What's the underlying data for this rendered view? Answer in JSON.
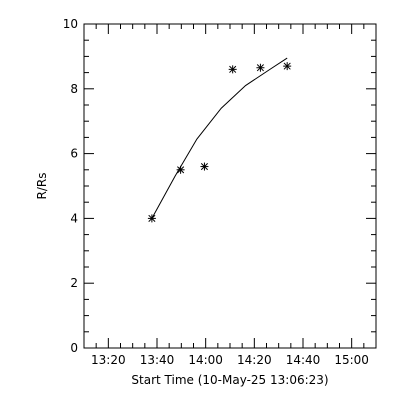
{
  "chart_data": {
    "type": "scatter",
    "title": "",
    "xlabel": "Start Time (10-May-25 13:06:23)",
    "ylabel": "R/Rs",
    "x_units": "minutes after 13:06:23",
    "xlim": [
      3.6,
      123.6
    ],
    "ylim": [
      0,
      10
    ],
    "grid": false,
    "x_ticks": [
      {
        "value": 13.6,
        "label": "13:20"
      },
      {
        "value": 33.6,
        "label": "13:40"
      },
      {
        "value": 53.6,
        "label": "14:00"
      },
      {
        "value": 73.6,
        "label": "14:20"
      },
      {
        "value": 93.6,
        "label": "14:40"
      },
      {
        "value": 113.6,
        "label": "15:00"
      }
    ],
    "y_ticks": [
      {
        "value": 0,
        "label": "0"
      },
      {
        "value": 2,
        "label": "2"
      },
      {
        "value": 4,
        "label": "4"
      },
      {
        "value": 6,
        "label": "6"
      },
      {
        "value": 8,
        "label": "8"
      },
      {
        "value": 10,
        "label": "10"
      }
    ],
    "series": [
      {
        "marker": "asterisk",
        "points": [
          {
            "x": 31.5,
            "y": 4.0
          },
          {
            "x": 43.3,
            "y": 5.5
          },
          {
            "x": 53.1,
            "y": 5.6
          },
          {
            "x": 64.7,
            "y": 8.6
          },
          {
            "x": 76.1,
            "y": 8.65
          },
          {
            "x": 87.1,
            "y": 8.7
          }
        ]
      },
      {
        "style": "line",
        "points": [
          {
            "x": 31.5,
            "y": 4.0
          },
          {
            "x": 41.0,
            "y": 5.3
          },
          {
            "x": 50.0,
            "y": 6.45
          },
          {
            "x": 60.0,
            "y": 7.4
          },
          {
            "x": 70.0,
            "y": 8.1
          },
          {
            "x": 80.0,
            "y": 8.6
          },
          {
            "x": 87.1,
            "y": 8.95
          }
        ]
      }
    ]
  }
}
